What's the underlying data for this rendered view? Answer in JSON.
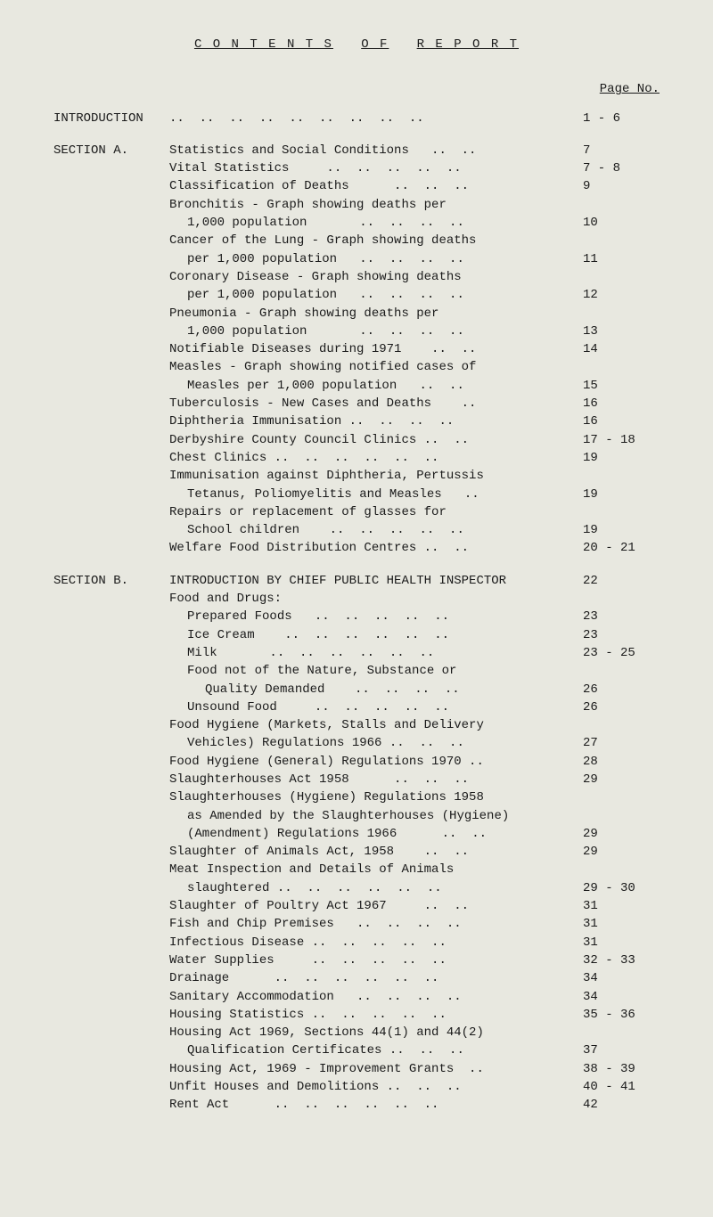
{
  "title_parts": [
    "C O N T E N T S",
    "O F",
    "R E P O R T"
  ],
  "page_no_label": "Page No.",
  "sections": [
    {
      "label": "INTRODUCTION",
      "entries": [
        {
          "desc": "..  ..  ..  ..  ..  ..  ..  ..  ..",
          "page": "1 - 6"
        }
      ]
    },
    {
      "label": "SECTION A.",
      "entries": [
        {
          "desc": "Statistics and Social Conditions   ..  ..",
          "page": "7"
        },
        {
          "desc": "Vital Statistics     ..  ..  ..  ..  ..",
          "page": "7 - 8"
        },
        {
          "desc": "Classification of Deaths      ..  ..  ..",
          "page": "9"
        },
        {
          "desc": "Bronchitis - Graph showing deaths per",
          "page": ""
        },
        {
          "desc": "1,000 population       ..  ..  ..  ..",
          "indent": 1,
          "page": "10"
        },
        {
          "desc": "Cancer of the Lung - Graph showing deaths",
          "page": ""
        },
        {
          "desc": "per 1,000 population   ..  ..  ..  ..",
          "indent": 1,
          "page": "11"
        },
        {
          "desc": "Coronary Disease - Graph showing deaths",
          "page": ""
        },
        {
          "desc": "per 1,000 population   ..  ..  ..  ..",
          "indent": 1,
          "page": "12"
        },
        {
          "desc": "Pneumonia - Graph showing deaths per",
          "page": ""
        },
        {
          "desc": "1,000 population       ..  ..  ..  ..",
          "indent": 1,
          "page": "13"
        },
        {
          "desc": "Notifiable Diseases during 1971    ..  ..",
          "page": "14"
        },
        {
          "desc": "Measles - Graph showing notified cases of",
          "page": ""
        },
        {
          "desc": "Measles per 1,000 population   ..  ..",
          "indent": 1,
          "page": "15"
        },
        {
          "desc": "Tuberculosis - New Cases and Deaths    ..",
          "page": "16"
        },
        {
          "desc": "Diphtheria Immunisation ..  ..  ..  ..",
          "page": "16"
        },
        {
          "desc": "Derbyshire County Council Clinics ..  ..",
          "page": "17 - 18"
        },
        {
          "desc": "Chest Clinics ..  ..  ..  ..  ..  ..",
          "page": "19"
        },
        {
          "desc": "Immunisation against Diphtheria, Pertussis",
          "page": ""
        },
        {
          "desc": "Tetanus, Poliomyelitis and Measles   ..",
          "indent": 1,
          "page": "19"
        },
        {
          "desc": "Repairs or replacement of glasses for",
          "page": ""
        },
        {
          "desc": "School children    ..  ..  ..  ..  ..",
          "indent": 1,
          "page": "19"
        },
        {
          "desc": "Welfare Food Distribution Centres ..  ..",
          "page": "20 - 21"
        }
      ]
    },
    {
      "label": "SECTION B.",
      "entries": [
        {
          "desc": "INTRODUCTION BY CHIEF PUBLIC HEALTH INSPECTOR",
          "page": "22"
        },
        {
          "desc": "Food and Drugs:",
          "page": ""
        },
        {
          "desc": "Prepared Foods   ..  ..  ..  ..  ..",
          "indent": 1,
          "page": "23"
        },
        {
          "desc": "Ice Cream    ..  ..  ..  ..  ..  ..",
          "indent": 1,
          "page": "23"
        },
        {
          "desc": "Milk       ..  ..  ..  ..  ..  ..",
          "indent": 1,
          "page": "23 - 25"
        },
        {
          "desc": "Food not of the Nature, Substance or",
          "indent": 1,
          "page": ""
        },
        {
          "desc": "Quality Demanded    ..  ..  ..  ..",
          "indent": 2,
          "page": "26"
        },
        {
          "desc": "Unsound Food     ..  ..  ..  ..  ..",
          "indent": 1,
          "page": "26"
        },
        {
          "desc": "Food Hygiene (Markets, Stalls and Delivery",
          "page": ""
        },
        {
          "desc": "Vehicles) Regulations 1966 ..  ..  ..",
          "indent": 1,
          "page": "27"
        },
        {
          "desc": "Food Hygiene (General) Regulations 1970 ..",
          "page": "28"
        },
        {
          "desc": "Slaughterhouses Act 1958      ..  ..  ..",
          "page": "29"
        },
        {
          "desc": "Slaughterhouses (Hygiene) Regulations 1958",
          "page": ""
        },
        {
          "desc": "as Amended by the Slaughterhouses (Hygiene)",
          "indent": 1,
          "page": ""
        },
        {
          "desc": "(Amendment) Regulations 1966      ..  ..",
          "indent": 1,
          "page": "29"
        },
        {
          "desc": "Slaughter of Animals Act, 1958    ..  ..",
          "page": "29"
        },
        {
          "desc": "Meat Inspection and Details of Animals",
          "page": ""
        },
        {
          "desc": "slaughtered ..  ..  ..  ..  ..  ..",
          "indent": 1,
          "page": "29 - 30"
        },
        {
          "desc": "Slaughter of Poultry Act 1967     ..  ..",
          "page": "31"
        },
        {
          "desc": "Fish and Chip Premises   ..  ..  ..  ..",
          "page": "31"
        },
        {
          "desc": "Infectious Disease ..  ..  ..  ..  ..",
          "page": "31"
        },
        {
          "desc": "Water Supplies     ..  ..  ..  ..  ..",
          "page": "32 - 33"
        },
        {
          "desc": "Drainage      ..  ..  ..  ..  ..  ..",
          "page": "34"
        },
        {
          "desc": "Sanitary Accommodation   ..  ..  ..  ..",
          "page": "34"
        },
        {
          "desc": "Housing Statistics ..  ..  ..  ..  ..",
          "page": "35 - 36"
        },
        {
          "desc": "Housing Act 1969, Sections 44(1) and 44(2)",
          "page": ""
        },
        {
          "desc": "Qualification Certificates ..  ..  ..",
          "indent": 1,
          "page": "37"
        },
        {
          "desc": "Housing Act, 1969 - Improvement Grants  ..",
          "page": "38 - 39"
        },
        {
          "desc": "Unfit Houses and Demolitions ..  ..  ..",
          "page": "40 - 41"
        },
        {
          "desc": "Rent Act      ..  ..  ..  ..  ..  ..",
          "page": "42"
        }
      ]
    }
  ]
}
